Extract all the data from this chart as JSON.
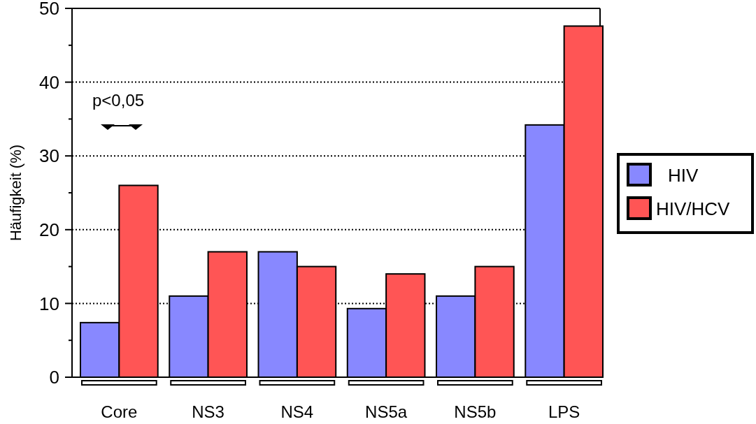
{
  "chart_data": {
    "type": "bar",
    "ylabel": "Häufigkeit (%)",
    "categories": [
      "Core",
      "NS3",
      "NS4",
      "NS5a",
      "NS5b",
      "LPS"
    ],
    "series": [
      {
        "name": "HIV",
        "color": "#8888ff",
        "values": [
          7.4,
          11,
          17,
          9.3,
          11,
          34.2
        ]
      },
      {
        "name": "HIV/HCV",
        "color": "#ff5555",
        "values": [
          26,
          17,
          15,
          14,
          15,
          47.6
        ]
      }
    ],
    "ylim": [
      0,
      50
    ],
    "yticks": [
      0,
      {
        "value": 5,
        "label": null
      },
      10,
      {
        "value": 15,
        "label": null
      },
      20,
      {
        "value": 25,
        "label": null
      },
      30,
      {
        "value": 35,
        "label": null
      },
      40,
      {
        "value": 45,
        "label": null
      },
      50
    ],
    "grid": "y",
    "legend": "right",
    "annotations": [
      "p<0,05"
    ]
  }
}
